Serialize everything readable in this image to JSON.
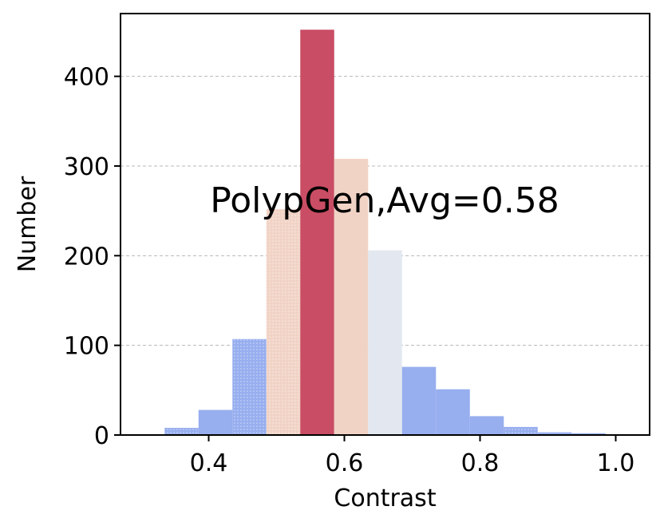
{
  "chart_data": {
    "type": "bar",
    "subtype": "histogram",
    "xlabel": "Contrast",
    "ylabel": "Number",
    "xlim": [
      0.27,
      1.05
    ],
    "ylim": [
      0,
      470
    ],
    "xticks": [
      "0.4",
      "0.6",
      "0.8",
      "1.0"
    ],
    "yticks": [
      "0",
      "100",
      "200",
      "300",
      "400"
    ],
    "grid": "horizontal dashed",
    "annotation": "PolypGen,Avg=0.58",
    "bin_width": 0.05,
    "bins": [
      {
        "start": 0.335,
        "value": 8,
        "color": "#97aeef",
        "hatched": true
      },
      {
        "start": 0.385,
        "value": 28,
        "color": "#97aeef",
        "hatched": false
      },
      {
        "start": 0.435,
        "value": 107,
        "color": "#97aeef",
        "hatched": true
      },
      {
        "start": 0.485,
        "value": 252,
        "color": "#f1d3c6",
        "hatched": true
      },
      {
        "start": 0.535,
        "value": 452,
        "color": "#c94d64",
        "hatched": false
      },
      {
        "start": 0.585,
        "value": 308,
        "color": "#f1d3c6",
        "hatched": false
      },
      {
        "start": 0.635,
        "value": 206,
        "color": "#e3e8f0",
        "hatched": false
      },
      {
        "start": 0.685,
        "value": 76,
        "color": "#97aeef",
        "hatched": false
      },
      {
        "start": 0.735,
        "value": 51,
        "color": "#97aeef",
        "hatched": false
      },
      {
        "start": 0.785,
        "value": 21,
        "color": "#97aeef",
        "hatched": false
      },
      {
        "start": 0.835,
        "value": 9,
        "color": "#97aeef",
        "hatched": true
      },
      {
        "start": 0.885,
        "value": 3,
        "color": "#97aeef",
        "hatched": false
      },
      {
        "start": 0.935,
        "value": 2,
        "color": "#97aeef",
        "hatched": false
      }
    ]
  }
}
